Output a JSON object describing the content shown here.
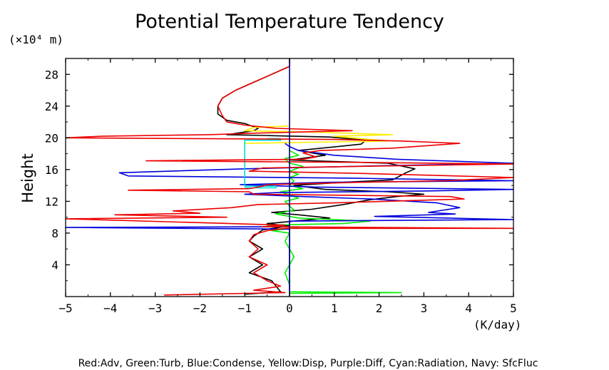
{
  "chart_data": {
    "type": "line",
    "title": "Potential Temperature Tendency",
    "ylabel": "Height",
    "yunit": "(×10⁴ m)",
    "xunit": "(K/day)",
    "footer": "Red:Adv, Green:Turb, Blue:Condense, Yellow:Disp, Purple:Diff, Cyan:Radiation, Navy: SfcFluc",
    "xlim": [
      -5,
      5
    ],
    "ylim": [
      0,
      30
    ],
    "xticks": [
      -5,
      -4,
      -3,
      -2,
      -1,
      0,
      1,
      2,
      3,
      4,
      5
    ],
    "xtick_labels": [
      "−5",
      "−4",
      "−3",
      "−2",
      "−1",
      "0",
      "1",
      "2",
      "3",
      "4",
      "5"
    ],
    "yticks": [
      4,
      8,
      12,
      16,
      20,
      24,
      28
    ],
    "ytick_labels": [
      "4",
      "8",
      "12",
      "16",
      "20",
      "24",
      "28"
    ],
    "series": [
      {
        "color": "#000000",
        "points": [
          [
            -1.0,
            0.3
          ],
          [
            -0.2,
            0.6
          ],
          [
            -0.4,
            2
          ],
          [
            -0.9,
            3
          ],
          [
            -0.6,
            4
          ],
          [
            -0.9,
            5
          ],
          [
            -0.6,
            6
          ],
          [
            -0.9,
            7
          ],
          [
            -0.8,
            7.6
          ],
          [
            -0.6,
            8.4
          ],
          [
            0.0,
            8.9
          ],
          [
            -0.5,
            9.2
          ],
          [
            0.3,
            9.6
          ],
          [
            0.9,
            9.9
          ],
          [
            0.2,
            10.3
          ],
          [
            -0.4,
            10.6
          ],
          [
            0.5,
            11
          ],
          [
            1.2,
            11.6
          ],
          [
            1.8,
            12.2
          ],
          [
            2.4,
            12.6
          ],
          [
            3.0,
            12.9
          ],
          [
            2.2,
            13.2
          ],
          [
            0.8,
            13.5
          ],
          [
            0.1,
            14
          ],
          [
            1.2,
            14.4
          ],
          [
            2.3,
            14.7
          ],
          [
            2.6,
            15.6
          ],
          [
            2.8,
            16.1
          ],
          [
            2.2,
            16.8
          ],
          [
            0.0,
            17.2
          ],
          [
            0.8,
            17.8
          ],
          [
            0.2,
            18.4
          ],
          [
            0.9,
            18.8
          ],
          [
            1.6,
            19.2
          ],
          [
            1.7,
            19.7
          ],
          [
            0.9,
            20.1
          ],
          [
            -0.6,
            20.3
          ],
          [
            -1.4,
            20.4
          ],
          [
            -0.8,
            20.9
          ],
          [
            -0.7,
            21.2
          ],
          [
            -1.0,
            21.8
          ],
          [
            -1.4,
            22.2
          ],
          [
            -1.6,
            23
          ],
          [
            -1.6,
            24
          ],
          [
            -1.5,
            25
          ],
          [
            -1.2,
            26
          ],
          [
            -0.8,
            27
          ],
          [
            -0.4,
            28
          ],
          [
            0.0,
            29
          ]
        ]
      },
      {
        "color": "#00ee00",
        "points": [
          [
            0.0,
            0.4
          ],
          [
            2.5,
            0.5
          ],
          [
            0.0,
            0.6
          ],
          [
            0.0,
            1.5
          ],
          [
            -0.1,
            3
          ],
          [
            0.1,
            5
          ],
          [
            -0.1,
            7
          ],
          [
            0.0,
            8
          ],
          [
            -0.4,
            8.3
          ],
          [
            0.2,
            8.7
          ],
          [
            -0.5,
            9
          ],
          [
            1.2,
            9.2
          ],
          [
            1.8,
            9.5
          ],
          [
            0.2,
            9.9
          ],
          [
            -0.3,
            10.4
          ],
          [
            0.1,
            10.9
          ],
          [
            0.0,
            11.4
          ],
          [
            -0.1,
            12
          ],
          [
            0.2,
            12.4
          ],
          [
            0.0,
            12.8
          ],
          [
            -0.2,
            13.2
          ],
          [
            0.3,
            13.6
          ],
          [
            0.0,
            14
          ],
          [
            0.1,
            14.6
          ],
          [
            0.0,
            15
          ],
          [
            0.2,
            15.4
          ],
          [
            0.0,
            15.8
          ],
          [
            0.3,
            16.4
          ],
          [
            0.0,
            16.8
          ],
          [
            -0.1,
            17.4
          ],
          [
            0.2,
            17.8
          ],
          [
            0.0,
            18.4
          ],
          [
            0.0,
            18.8
          ]
        ]
      },
      {
        "color": "#0000dd",
        "points": [
          [
            0.0,
            0.5
          ],
          [
            0.0,
            8.5
          ],
          [
            -5.0,
            8.7
          ],
          [
            0.0,
            8.8
          ],
          [
            0.0,
            9.5
          ],
          [
            5.0,
            9.7
          ],
          [
            3.5,
            9.9
          ],
          [
            1.9,
            10.1
          ],
          [
            3.7,
            10.4
          ],
          [
            3.1,
            10.6
          ],
          [
            3.8,
            11.2
          ],
          [
            3.3,
            11.8
          ],
          [
            1.8,
            12.3
          ],
          [
            0.3,
            12.6
          ],
          [
            -1.0,
            12.9
          ],
          [
            -0.3,
            13.1
          ],
          [
            3.0,
            13.3
          ],
          [
            5.0,
            13.5
          ],
          [
            0.6,
            13.8
          ],
          [
            -1.1,
            14.1
          ],
          [
            0.9,
            14.4
          ],
          [
            5.0,
            14.6
          ],
          [
            1.6,
            14.9
          ],
          [
            -3.6,
            15.2
          ],
          [
            -3.8,
            15.6
          ],
          [
            -1.0,
            16.1
          ],
          [
            2.2,
            16.5
          ],
          [
            5.0,
            16.8
          ],
          [
            2.4,
            17.3
          ],
          [
            1.0,
            17.8
          ],
          [
            0.2,
            18.4
          ],
          [
            0.0,
            18.9
          ],
          [
            -0.1,
            19.3
          ]
        ]
      },
      {
        "color": "#ffee00",
        "points": [
          [
            -1.0,
            19.3
          ],
          [
            2.2,
            19.6
          ],
          [
            1.0,
            20.2
          ],
          [
            2.3,
            20.4
          ],
          [
            0.6,
            20.7
          ],
          [
            -1.0,
            20.9
          ],
          [
            -0.8,
            21.3
          ],
          [
            0.0,
            21.5
          ],
          [
            0.0,
            25
          ]
        ]
      },
      {
        "color": "#00dddd",
        "points": [
          [
            -1.0,
            13.7
          ],
          [
            -0.3,
            13.7
          ],
          [
            -0.3,
            13.9
          ],
          [
            -1.0,
            13.9
          ],
          [
            -1.0,
            19.7
          ],
          [
            -0.2,
            19.7
          ],
          [
            -0.2,
            19.9
          ],
          [
            -0.5,
            19.9
          ]
        ]
      },
      {
        "color": "#ee0000",
        "points": [
          [
            -2.8,
            0.2
          ],
          [
            -0.1,
            0.5
          ],
          [
            -0.8,
            0.8
          ],
          [
            -0.2,
            1.3
          ],
          [
            -0.5,
            2
          ],
          [
            -0.8,
            3
          ],
          [
            -0.5,
            4
          ],
          [
            -0.9,
            5
          ],
          [
            -0.7,
            6
          ],
          [
            -0.9,
            7
          ],
          [
            -0.8,
            7.8
          ],
          [
            -0.5,
            8.3
          ],
          [
            -0.1,
            8.6
          ],
          [
            5.0,
            8.6
          ],
          [
            -0.6,
            8.8
          ],
          [
            -0.1,
            9.0
          ],
          [
            -5.0,
            9.8
          ],
          [
            -1.4,
            10
          ],
          [
            -3.9,
            10.3
          ],
          [
            -2.0,
            10.5
          ],
          [
            -2.6,
            10.8
          ],
          [
            -1.3,
            11.2
          ],
          [
            -0.7,
            11.6
          ],
          [
            1.0,
            11.8
          ],
          [
            3.9,
            12.3
          ],
          [
            3.6,
            12.6
          ],
          [
            -0.8,
            12.9
          ],
          [
            -0.9,
            13.2
          ],
          [
            -3.6,
            13.4
          ],
          [
            -0.9,
            13.6
          ],
          [
            -0.6,
            13.9
          ],
          [
            -0.5,
            14.1
          ],
          [
            1.6,
            14.4
          ],
          [
            3.5,
            14.6
          ],
          [
            5.0,
            15.0
          ],
          [
            1.7,
            15.5
          ],
          [
            -0.9,
            15.8
          ],
          [
            -0.6,
            16.2
          ],
          [
            2.6,
            16.5
          ],
          [
            5.0,
            16.7
          ],
          [
            1.6,
            16.9
          ],
          [
            -3.2,
            17.1
          ],
          [
            0.3,
            17.3
          ],
          [
            0.6,
            17.6
          ],
          [
            0.3,
            18.1
          ],
          [
            0.7,
            18.4
          ],
          [
            2.3,
            18.7
          ],
          [
            3.8,
            19.3
          ],
          [
            2.5,
            19.6
          ],
          [
            1.0,
            19.8
          ],
          [
            -5.0,
            20.0
          ],
          [
            -4.2,
            20.2
          ],
          [
            -1.8,
            20.4
          ],
          [
            -0.7,
            20.6
          ],
          [
            1.4,
            20.9
          ],
          [
            -0.3,
            21.2
          ],
          [
            -1.0,
            21.6
          ],
          [
            -1.4,
            22.0
          ],
          [
            -1.5,
            22.8
          ],
          [
            -1.6,
            24
          ],
          [
            -1.5,
            25
          ],
          [
            -1.2,
            26
          ],
          [
            -0.8,
            27
          ],
          [
            -0.4,
            28
          ],
          [
            0.0,
            29
          ],
          [
            0.0,
            30
          ]
        ]
      }
    ],
    "zero_line": {
      "color": "#000080",
      "x": 0
    }
  }
}
